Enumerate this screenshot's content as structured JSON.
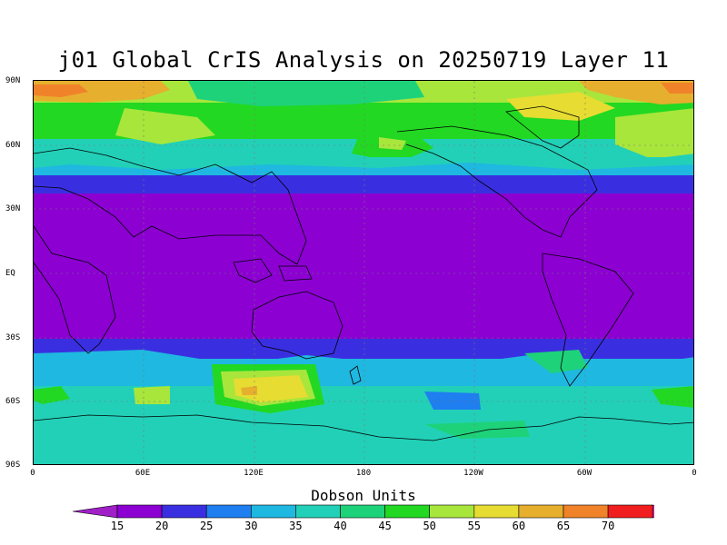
{
  "title": "j01 Global CrIS Analysis on 20250719 Layer 11",
  "colorbar_title": "Dobson Units",
  "y_tick_labels": [
    "90N",
    "60N",
    "30N",
    "EQ",
    "30S",
    "60S",
    "90S"
  ],
  "x_tick_labels": [
    "0",
    "60E",
    "120E",
    "180",
    "120W",
    "60W",
    "0"
  ],
  "colorbar_labels": [
    "15",
    "20",
    "25",
    "30",
    "35",
    "40",
    "45",
    "50",
    "55",
    "60",
    "65",
    "70"
  ],
  "colors": {
    "lt15": "#a020c8",
    "c15": "#8c00d2",
    "c20": "#3a2fe0",
    "c25": "#1f7ef0",
    "c30": "#1fb8e0",
    "c35": "#22d0b8",
    "c40": "#1ed27a",
    "c45": "#22d822",
    "c50": "#a8e63c",
    "c55": "#e6dc32",
    "c60": "#e6af2e",
    "c65": "#f0822a",
    "c70": "#f01e1e",
    "gt70": "#d82896"
  }
}
